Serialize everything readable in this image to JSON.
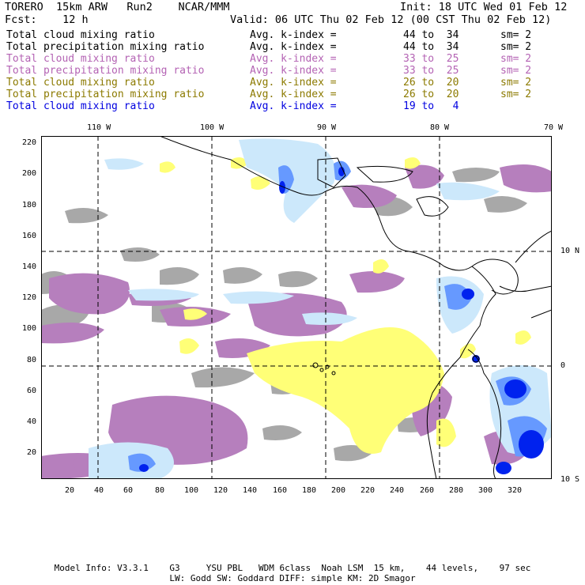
{
  "header": {
    "model": "TORERO  15km ARW   Run2    NCAR/MMM",
    "init": "Init: 18 UTC Wed 01 Feb 12",
    "fcst": "Fcst:    12 h",
    "valid": "Valid: 06 UTC Thu 02 Feb 12 (00 CST Thu 02 Feb 12)"
  },
  "legend": [
    {
      "field": "Total cloud mixing ratio",
      "stat": "Avg. k-index =",
      "range": "44 to  34",
      "sm": "sm= 2",
      "color": "#000000"
    },
    {
      "field": "Total precipitation mixing ratio",
      "stat": "Avg. k-index =",
      "range": "44 to  34",
      "sm": "sm= 2",
      "color": "#000000"
    },
    {
      "field": "Total cloud mixing ratio",
      "stat": "Avg. k-index =",
      "range": "33 to  25",
      "sm": "sm= 2",
      "color": "#b463b4"
    },
    {
      "field": "Total precipitation mixing ratio",
      "stat": "Avg. k-index =",
      "range": "33 to  25",
      "sm": "sm= 2",
      "color": "#b463b4"
    },
    {
      "field": "Total cloud mixing ratio",
      "stat": "Avg. k-index =",
      "range": "26 to  20",
      "sm": "sm= 2",
      "color": "#8c7a00"
    },
    {
      "field": "Total precipitation mixing ratio",
      "stat": "Avg. k-index =",
      "range": "26 to  20",
      "sm": "sm= 2",
      "color": "#8c7a00"
    },
    {
      "field": "Total cloud mixing ratio",
      "stat": "Avg. k-index =",
      "range": "19 to   4",
      "sm": "",
      "color": "#0000e0"
    }
  ],
  "map": {
    "lon_labels": [
      "110 W",
      "100 W",
      "90 W",
      "80 W",
      "70 W"
    ],
    "lat_labels": [
      "10 N",
      "0",
      "10 S"
    ],
    "y_ticks": [
      "220",
      "200",
      "180",
      "160",
      "140",
      "120",
      "100",
      "80",
      "60",
      "40",
      "20"
    ],
    "x_ticks": [
      "20",
      "40",
      "60",
      "80",
      "100",
      "120",
      "140",
      "160",
      "180",
      "200",
      "220",
      "240",
      "260",
      "280",
      "300",
      "320"
    ],
    "colors": {
      "gray": "#a8a8a8",
      "purple": "#b67fbd",
      "yellow": "#ffff77",
      "light_blue": "#cce8fb",
      "blue": "#6699ff",
      "dark_blue": "#0022ee"
    }
  },
  "footer": {
    "line1": "Model Info: V3.3.1    G3     YSU PBL   WDM 6class  Noah LSM  15 km,    44 levels,    97 sec",
    "line2": "LW: Godd SW: Goddard DIFF: simple KM: 2D Smagor"
  }
}
